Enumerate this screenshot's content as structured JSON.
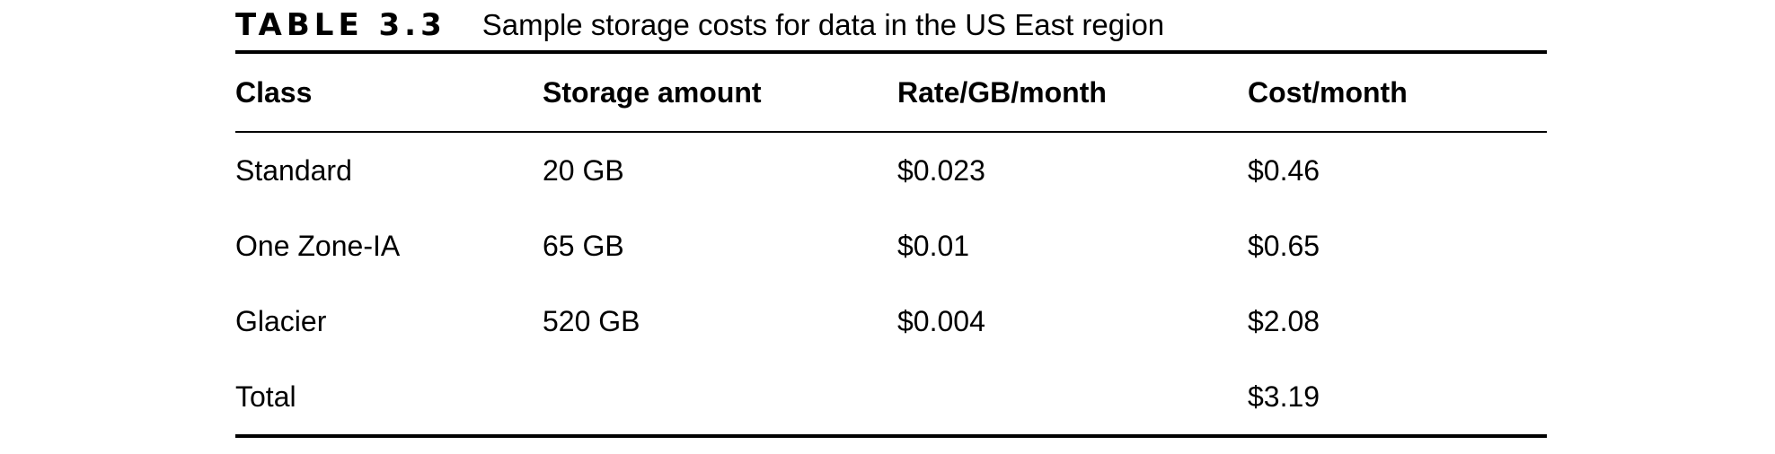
{
  "caption": {
    "label": "TABLE 3.3",
    "text": "Sample storage costs for data in the US East region"
  },
  "columns": [
    "Class",
    "Storage amount",
    "Rate/GB/month",
    "Cost/month"
  ],
  "rows": [
    [
      "Standard",
      "20 GB",
      "$0.023",
      "$0.46"
    ],
    [
      "One Zone-IA",
      "65 GB",
      "$0.01",
      "$0.65"
    ],
    [
      "Glacier",
      "520 GB",
      "$0.004",
      "$2.08"
    ],
    [
      "Total",
      "",
      "",
      "$3.19"
    ]
  ]
}
